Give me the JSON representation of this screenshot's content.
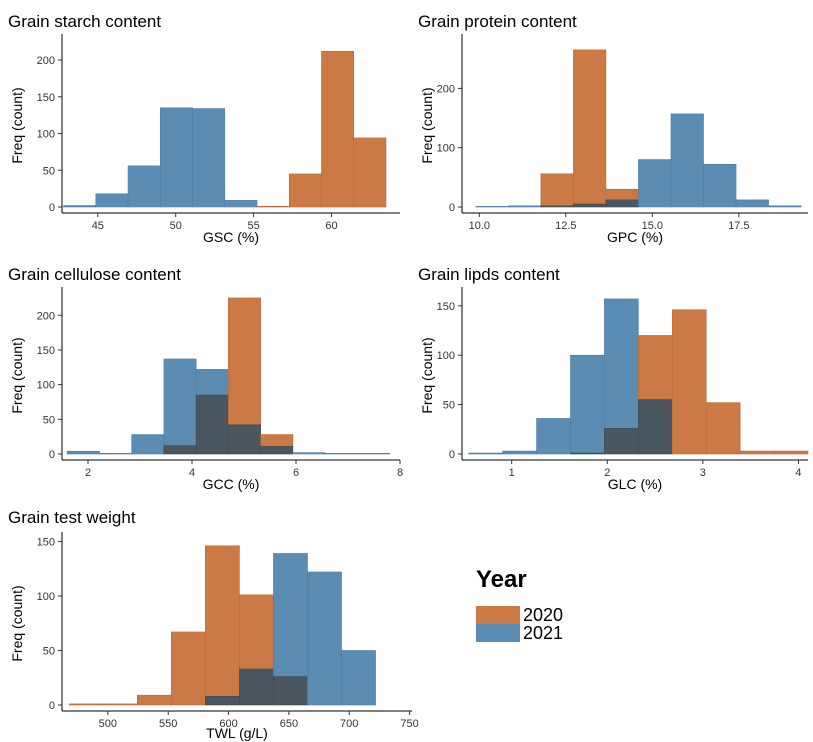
{
  "colors": {
    "y2020": "#cc7a45",
    "y2021": "#5b8db4",
    "overlap": "#4a5660"
  },
  "legend": {
    "title": "Year",
    "items": [
      {
        "label": "2020",
        "color": "#cc7a45"
      },
      {
        "label": "2021",
        "color": "#5b8db4"
      }
    ]
  },
  "chart_data": [
    {
      "type": "histogram",
      "title": "Grain starch content",
      "xlabel": "GSC (%)",
      "ylabel": "Freq (count)",
      "xlim": [
        42.7,
        64.4
      ],
      "ylim": [
        0,
        230
      ],
      "xticks": [
        45,
        50,
        55,
        60
      ],
      "yticks": [
        0,
        50,
        100,
        150,
        200
      ],
      "bin_edges": [
        42.8,
        44.87,
        46.94,
        49.01,
        51.08,
        53.15,
        55.22,
        57.29,
        59.36,
        61.43,
        63.5
      ],
      "series": [
        {
          "name": "2020",
          "values": [
            0,
            0,
            0,
            0,
            0,
            0,
            1,
            45,
            212,
            94
          ]
        },
        {
          "name": "2021",
          "values": [
            2,
            18,
            56,
            135,
            134,
            9,
            0,
            0,
            0,
            0
          ]
        }
      ]
    },
    {
      "type": "histogram",
      "title": "Grain protein content",
      "xlabel": "GPC (%)",
      "ylabel": "Freq (count)",
      "xlim": [
        9.5,
        19.5
      ],
      "ylim": [
        0,
        285
      ],
      "xticks": [
        10.0,
        12.5,
        15.0,
        17.5
      ],
      "yticks": [
        0,
        100,
        200
      ],
      "bin_edges": [
        9.9,
        10.84,
        11.78,
        12.72,
        13.66,
        14.6,
        15.54,
        16.48,
        17.42,
        18.36,
        19.3
      ],
      "series": [
        {
          "name": "2020",
          "values": [
            0,
            0,
            56,
            265,
            30,
            0,
            0,
            0,
            0,
            0
          ]
        },
        {
          "name": "2021",
          "values": [
            1,
            2,
            2,
            5,
            12,
            80,
            157,
            72,
            12,
            2
          ]
        }
      ]
    },
    {
      "type": "histogram",
      "title": "Grain cellulose content",
      "xlabel": "GCC (%)",
      "ylabel": "Freq (count)",
      "xlim": [
        1.5,
        8.0
      ],
      "ylim": [
        0,
        235
      ],
      "xticks": [
        2,
        4,
        6,
        8
      ],
      "yticks": [
        0,
        50,
        100,
        150,
        200
      ],
      "bin_edges": [
        1.6,
        2.22,
        2.84,
        3.46,
        4.08,
        4.7,
        5.32,
        5.94,
        6.56,
        7.18,
        7.8
      ],
      "series": [
        {
          "name": "2020",
          "values": [
            0,
            0,
            0,
            12,
            85,
            225,
            28,
            0,
            0,
            0
          ]
        },
        {
          "name": "2021",
          "values": [
            4,
            1,
            28,
            137,
            122,
            42,
            11,
            2,
            1,
            1
          ]
        }
      ]
    },
    {
      "type": "histogram",
      "title": "Grain lipds content",
      "xlabel": "GLC (%)",
      "ylabel": "Freq (count)",
      "xlim": [
        0.48,
        4.1
      ],
      "ylim": [
        0,
        165
      ],
      "xticks": [
        1,
        2,
        3,
        4
      ],
      "yticks": [
        0,
        50,
        100,
        150
      ],
      "bin_edges": [
        0.55,
        0.905,
        1.26,
        1.615,
        1.97,
        2.325,
        2.68,
        3.035,
        3.39,
        3.745,
        4.1
      ],
      "series": [
        {
          "name": "2020",
          "values": [
            0,
            0,
            0,
            1,
            26,
            120,
            146,
            52,
            3,
            3
          ]
        },
        {
          "name": "2021",
          "values": [
            1,
            3,
            36,
            100,
            157,
            55,
            0,
            0,
            0,
            0
          ]
        }
      ]
    },
    {
      "type": "histogram",
      "title": "Grain test weight",
      "xlabel": "TWL (g/L)",
      "ylabel": "Freq (count)",
      "xlim": [
        462,
        752
      ],
      "ylim": [
        0,
        155
      ],
      "xticks": [
        500,
        550,
        600,
        650,
        700,
        750
      ],
      "yticks": [
        0,
        50,
        100,
        150
      ],
      "bin_edges": [
        468,
        496.2,
        524.4,
        552.6,
        580.8,
        609,
        637.2,
        665.4,
        693.6,
        721.8,
        750
      ],
      "series": [
        {
          "name": "2020",
          "values": [
            1,
            1,
            9,
            67,
            146,
            101,
            26,
            0,
            0,
            0
          ]
        },
        {
          "name": "2021",
          "values": [
            0,
            0,
            0,
            0,
            8,
            33,
            139,
            122,
            50,
            0
          ]
        }
      ]
    }
  ]
}
